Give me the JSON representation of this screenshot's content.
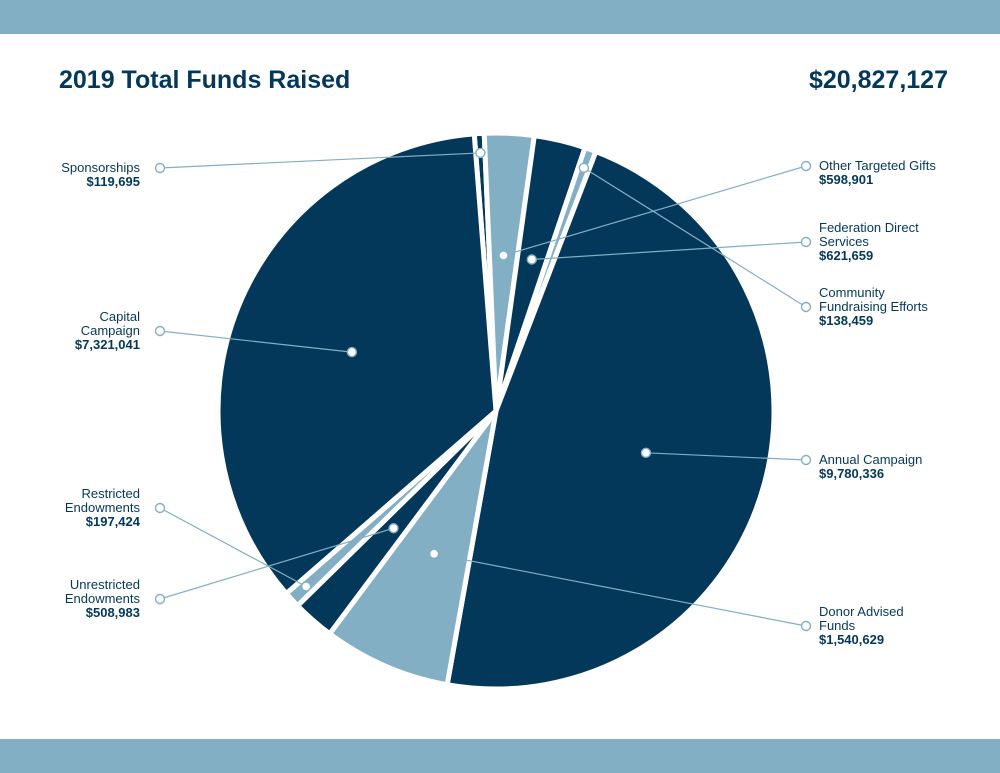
{
  "header": {
    "title": "2019 Total Funds Raised",
    "total": "$20,827,127"
  },
  "colors": {
    "band": "#82afc4",
    "dark": "#03385a",
    "light": "#82afc4",
    "leader": "#82afc4",
    "text": "#03385a"
  },
  "chart_data": {
    "type": "pie",
    "title": "2019 Total Funds Raised",
    "total_label": "$20,827,127",
    "slices": [
      {
        "name": "Sponsorships",
        "label": "Sponsorships",
        "value": 119695,
        "value_label": "$119,695",
        "color": "#03385a",
        "side": "left"
      },
      {
        "name": "Other Targeted Gifts",
        "label": "Other Targeted Gifts",
        "value": 598901,
        "value_label": "$598,901",
        "color": "#82afc4",
        "side": "right"
      },
      {
        "name": "Federation Direct Services",
        "label": "Federation Direct\nServices",
        "value": 621659,
        "value_label": "$621,659",
        "color": "#03385a",
        "side": "right"
      },
      {
        "name": "Community Fundraising Efforts",
        "label": "Community\nFundraising Efforts",
        "value": 138459,
        "value_label": "$138,459",
        "color": "#82afc4",
        "side": "right"
      },
      {
        "name": "Annual Campaign",
        "label": "Annual Campaign",
        "value": 9780336,
        "value_label": "$9,780,336",
        "color": "#03385a",
        "side": "right"
      },
      {
        "name": "Donor Advised Funds",
        "label": "Donor Advised\nFunds",
        "value": 1540629,
        "value_label": "$1,540,629",
        "color": "#82afc4",
        "side": "right"
      },
      {
        "name": "Unrestricted Endowments",
        "label": "Unrestricted\nEndowments",
        "value": 508983,
        "value_label": "$508,983",
        "color": "#03385a",
        "side": "left"
      },
      {
        "name": "Restricted Endowments",
        "label": "Restricted\nEndowments",
        "value": 197424,
        "value_label": "$197,424",
        "color": "#82afc4",
        "side": "left"
      },
      {
        "name": "Capital Campaign",
        "label": "Capital\nCampaign",
        "value": 7321041,
        "value_label": "$7,321,041",
        "color": "#03385a",
        "side": "left"
      }
    ]
  }
}
